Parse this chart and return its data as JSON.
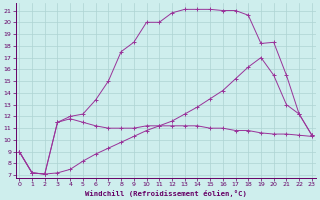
{
  "xlabel": "Windchill (Refroidissement éolien,°C)",
  "background_color": "#ceeeed",
  "grid_color": "#aed4d3",
  "line_color": "#993399",
  "x_ticks": [
    0,
    1,
    2,
    3,
    4,
    5,
    6,
    7,
    8,
    9,
    10,
    11,
    12,
    13,
    14,
    15,
    16,
    17,
    18,
    19,
    20,
    21,
    22,
    23
  ],
  "y_ticks": [
    7,
    8,
    9,
    10,
    11,
    12,
    13,
    14,
    15,
    16,
    17,
    18,
    19,
    20,
    21
  ],
  "ylim": [
    6.8,
    21.6
  ],
  "xlim": [
    -0.3,
    23.3
  ],
  "series1_x": [
    0,
    1,
    2,
    3,
    4,
    5,
    6,
    7,
    8,
    9,
    10,
    11,
    12,
    13,
    14,
    15,
    16,
    17,
    18,
    19,
    20,
    21,
    22,
    23
  ],
  "series1_y": [
    9.0,
    7.2,
    7.1,
    11.5,
    11.8,
    11.5,
    11.2,
    11.0,
    11.0,
    11.0,
    11.2,
    11.2,
    11.2,
    11.2,
    11.2,
    11.0,
    11.0,
    10.8,
    10.8,
    10.6,
    10.5,
    10.5,
    10.4,
    10.3
  ],
  "series2_x": [
    0,
    1,
    2,
    3,
    4,
    5,
    6,
    7,
    8,
    9,
    10,
    11,
    12,
    13,
    14,
    15,
    16,
    17,
    18,
    19,
    20,
    21,
    22,
    23
  ],
  "series2_y": [
    9.0,
    7.2,
    7.1,
    11.5,
    12.0,
    12.2,
    13.4,
    15.0,
    17.5,
    18.3,
    20.0,
    20.0,
    20.8,
    21.1,
    21.1,
    21.1,
    21.0,
    21.0,
    20.6,
    18.2,
    18.3,
    15.5,
    12.2,
    10.4
  ],
  "series3_x": [
    0,
    1,
    2,
    3,
    4,
    5,
    6,
    7,
    8,
    9,
    10,
    11,
    12,
    13,
    14,
    15,
    16,
    17,
    18,
    19,
    20,
    21,
    22,
    23
  ],
  "series3_y": [
    9.0,
    7.2,
    7.1,
    7.2,
    7.5,
    8.2,
    8.8,
    9.3,
    9.8,
    10.3,
    10.8,
    11.2,
    11.6,
    12.2,
    12.8,
    13.5,
    14.2,
    15.2,
    16.2,
    17.0,
    15.5,
    13.0,
    12.2,
    10.4
  ]
}
